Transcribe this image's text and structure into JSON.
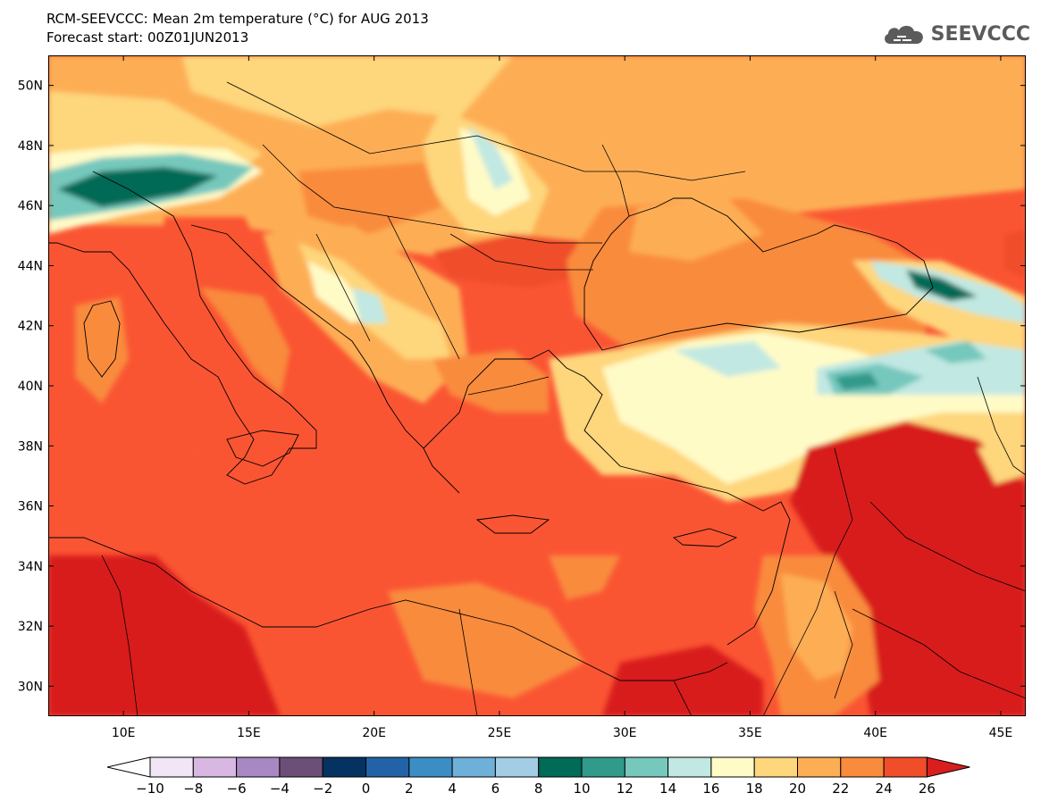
{
  "header": {
    "title_line1": "RCM-SEEVCCC: Mean 2m temperature (°C) for AUG 2013",
    "title_line2": "Forecast start: 00Z01JUN2013"
  },
  "logo": {
    "text": "SEEVCCC",
    "icon": "cloud-icon"
  },
  "map": {
    "lon_range": [
      7,
      46
    ],
    "lat_range": [
      29,
      51
    ],
    "lat_ticks": [
      "50N",
      "48N",
      "46N",
      "44N",
      "42N",
      "40N",
      "38N",
      "36N",
      "34N",
      "32N",
      "30N"
    ],
    "lon_ticks": [
      "10E",
      "15E",
      "20E",
      "25E",
      "30E",
      "35E",
      "40E",
      "45E"
    ],
    "background_color": "#fa5533",
    "border_color": "#000000"
  },
  "colorbar": {
    "labels": [
      "-10",
      "-8",
      "-6",
      "-4",
      "-2",
      "0",
      "2",
      "4",
      "6",
      "8",
      "10",
      "12",
      "14",
      "16",
      "18",
      "20",
      "22",
      "24",
      "26"
    ],
    "colors": [
      "#ffffff",
      "#f0e6f5",
      "#d8b8e3",
      "#a888c2",
      "#6c4f77",
      "#063262",
      "#2163a6",
      "#3c8dc4",
      "#6fb0d8",
      "#a3cde4",
      "#006b56",
      "#319a8a",
      "#76c8bd",
      "#c1e8e2",
      "#fffbc7",
      "#fed67b",
      "#fdae54",
      "#f98b3c",
      "#f04d2b",
      "#d81e1e"
    ]
  }
}
